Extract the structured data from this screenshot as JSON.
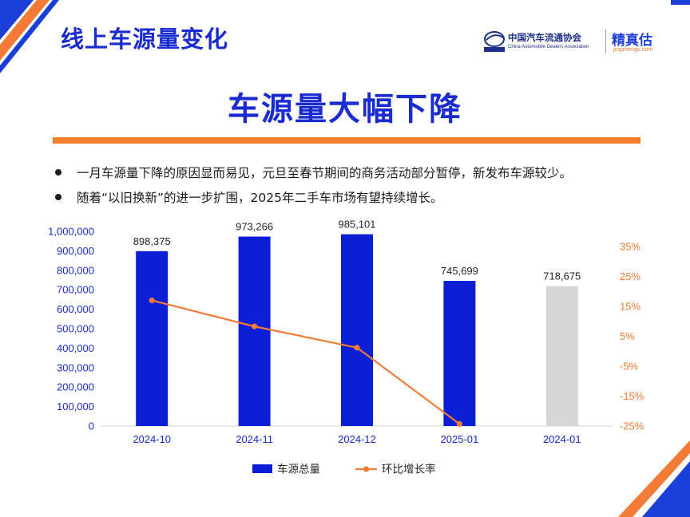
{
  "header": {
    "section_title": "线上车源量变化",
    "logo_cn": "中国汽车流通协会",
    "logo_en": "China Automobile Dealers Association",
    "brand": "精真估",
    "brand_url": "jingzhengu.com",
    "watermark": "精真估"
  },
  "main_title": "车源量大幅下降",
  "bullets": [
    "一月车源量下降的原因显而易见，元旦至春节期间的商务活动部分暂停，新发布车源较少。",
    "随着“以旧换新”的进一步扩围，2025年二手车市场有望持续增长。"
  ],
  "colors": {
    "title_blue": "#1a2bd1",
    "bar_blue": "#0a1ed6",
    "bar_gray": "#d6d6d6",
    "line_orange": "#f47b35",
    "divider_orange": "#f27f2d"
  },
  "chart_data": {
    "type": "bar",
    "categories": [
      "2024-10",
      "2024-11",
      "2024-12",
      "2025-01",
      "2024-01"
    ],
    "series": [
      {
        "name": "车源总量",
        "type": "bar",
        "axis": "left",
        "values": [
          898375,
          973266,
          985101,
          745699,
          718675
        ],
        "labels": [
          "898,375",
          "973,266",
          "985,101",
          "745,699",
          "718,675"
        ],
        "colors": [
          "#0a1ed6",
          "#0a1ed6",
          "#0a1ed6",
          "#0a1ed6",
          "#d6d6d6"
        ]
      },
      {
        "name": "环比增长率",
        "type": "line",
        "axis": "right",
        "values": [
          17,
          8.3,
          1.2,
          -24.3,
          null
        ]
      }
    ],
    "left_axis": {
      "min": 0,
      "max": 1000000,
      "step": 100000,
      "ticks": [
        "0",
        "100,000",
        "200,000",
        "300,000",
        "400,000",
        "500,000",
        "600,000",
        "700,000",
        "800,000",
        "900,000",
        "1,000,000"
      ]
    },
    "right_axis": {
      "min": -25,
      "max": 35,
      "step": 10,
      "ticks": [
        "-25%",
        "-15%",
        "-5%",
        "5%",
        "15%",
        "25%",
        "35%"
      ]
    },
    "grid": false,
    "legend_position": "bottom"
  }
}
